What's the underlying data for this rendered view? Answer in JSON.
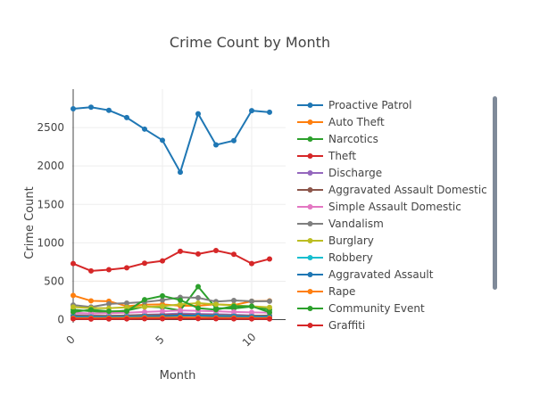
{
  "chart_data": {
    "type": "line",
    "title": "Crime Count by Month",
    "xlabel": "Month",
    "ylabel": "Crime Count",
    "x": [
      0,
      1,
      2,
      3,
      4,
      5,
      6,
      7,
      8,
      9,
      10,
      11
    ],
    "xlim": [
      -0.1,
      11.9
    ],
    "ylim": [
      -40,
      3000
    ],
    "x_ticks": [
      0,
      5,
      10
    ],
    "y_ticks": [
      0,
      500,
      1000,
      1500,
      2000,
      2500
    ],
    "grid": true,
    "legend_position": "right",
    "legend_scrollable": true,
    "series": [
      {
        "name": "Proactive Patrol",
        "color": "#1f77b4",
        "values": [
          2745,
          2765,
          2725,
          2630,
          2480,
          2335,
          1920,
          2680,
          2275,
          2330,
          2720,
          2700
        ]
      },
      {
        "name": "Auto Theft",
        "color": "#ff7f0e",
        "values": [
          315,
          245,
          240,
          175,
          195,
          200,
          180,
          180,
          200,
          190,
          240,
          245
        ]
      },
      {
        "name": "Narcotics",
        "color": "#2ca02c",
        "values": [
          130,
          110,
          100,
          120,
          170,
          160,
          120,
          430,
          150,
          145,
          170,
          130
        ]
      },
      {
        "name": "Theft",
        "color": "#d62728",
        "values": [
          730,
          635,
          650,
          675,
          735,
          765,
          890,
          855,
          900,
          850,
          730,
          790
        ]
      },
      {
        "name": "Discharge",
        "color": "#9467bd",
        "values": [
          60,
          55,
          50,
          55,
          65,
          70,
          80,
          75,
          70,
          65,
          55,
          50
        ]
      },
      {
        "name": "Aggravated Assault Domestic",
        "color": "#8c564b",
        "values": [
          55,
          50,
          50,
          55,
          60,
          60,
          65,
          60,
          60,
          55,
          50,
          55
        ]
      },
      {
        "name": "Simple Assault Domestic",
        "color": "#e377c2",
        "values": [
          90,
          80,
          85,
          90,
          100,
          110,
          120,
          115,
          110,
          100,
          95,
          90
        ]
      },
      {
        "name": "Vandalism",
        "color": "#7f7f7f",
        "values": [
          190,
          165,
          205,
          215,
          230,
          255,
          290,
          285,
          235,
          250,
          240,
          240
        ]
      },
      {
        "name": "Burglary",
        "color": "#bcbd22",
        "values": [
          165,
          150,
          150,
          160,
          165,
          175,
          200,
          215,
          200,
          185,
          175,
          160
        ]
      },
      {
        "name": "Robbery",
        "color": "#17becf",
        "values": [
          40,
          35,
          35,
          40,
          45,
          45,
          50,
          55,
          50,
          45,
          40,
          40
        ]
      },
      {
        "name": "Aggravated Assault",
        "color": "#1f77b4",
        "values": [
          35,
          30,
          30,
          35,
          40,
          45,
          55,
          50,
          45,
          40,
          35,
          35
        ]
      },
      {
        "name": "Rape",
        "color": "#ff7f0e",
        "values": [
          20,
          18,
          20,
          22,
          25,
          25,
          28,
          26,
          24,
          22,
          20,
          20
        ]
      },
      {
        "name": "Community Event",
        "color": "#2ca02c",
        "values": [
          100,
          130,
          110,
          110,
          260,
          310,
          255,
          150,
          130,
          175,
          175,
          95
        ]
      },
      {
        "name": "Graffiti",
        "color": "#d62728",
        "values": [
          10,
          8,
          9,
          10,
          12,
          12,
          15,
          13,
          12,
          11,
          10,
          9
        ]
      }
    ]
  }
}
